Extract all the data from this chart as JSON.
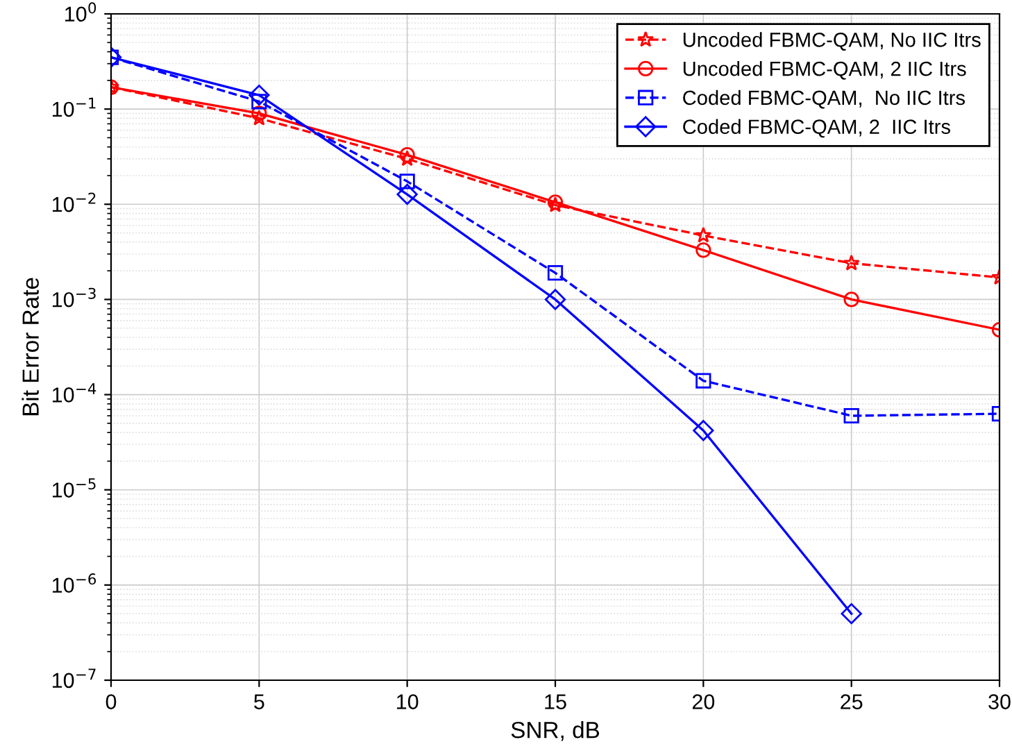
{
  "chart_data": {
    "type": "line",
    "xlabel": "SNR, dB",
    "ylabel": "Bit Error Rate",
    "x": [
      0,
      5,
      10,
      15,
      20,
      25,
      30
    ],
    "log": "y",
    "grid": true,
    "legend": "top right",
    "xlim": [
      0,
      30
    ],
    "xticks": [
      0,
      5,
      10,
      15,
      20,
      25,
      30
    ],
    "ylim": [
      1e-07,
      1
    ],
    "yticks": [
      {
        "value": 1e-07,
        "label": "10$^{−7}$"
      },
      {
        "value": 1e-06,
        "label": "10$^{−6}$"
      },
      {
        "value": 1e-05,
        "label": "10$^{−5}$"
      },
      {
        "value": 0.0001,
        "label": "10$^{−4}$"
      },
      {
        "value": 0.001,
        "label": "10$^{−3}$"
      },
      {
        "value": 0.01,
        "label": "10$^{−2}$"
      },
      {
        "value": 0.1,
        "label": "10$^{−1}$"
      },
      {
        "value": 1,
        "label": "10$^{0}$"
      }
    ],
    "series": [
      {
        "name": "Uncoded FBMC-QAM, No IIC Itrs",
        "color": "#ff0000",
        "marker": "star",
        "line_style": "dashed",
        "values": [
          0.17,
          0.08,
          0.03,
          0.0098,
          0.0047,
          0.0024,
          0.0017
        ]
      },
      {
        "name": "Uncoded FBMC-QAM, 2 IIC Itrs",
        "color": "#ff0000",
        "marker": "circle",
        "line_style": "solid",
        "values": [
          0.17,
          0.09,
          0.033,
          0.0105,
          0.0033,
          0.001,
          0.00048
        ]
      },
      {
        "name": "Coded FBMC-QAM,  No IIC Itrs",
        "color": "#0000ff",
        "marker": "square",
        "line_style": "dashed",
        "values": [
          0.35,
          0.12,
          0.0174,
          0.0019,
          0.00014,
          6e-05,
          6.3e-05
        ]
      },
      {
        "name": "Coded FBMC-QAM, 2  IIC Itrs",
        "color": "#0000ff",
        "marker": "diamond",
        "line_style": "solid",
        "values": [
          0.35,
          0.14,
          0.0127,
          0.001,
          4.2e-05,
          5e-07,
          null
        ]
      }
    ]
  }
}
